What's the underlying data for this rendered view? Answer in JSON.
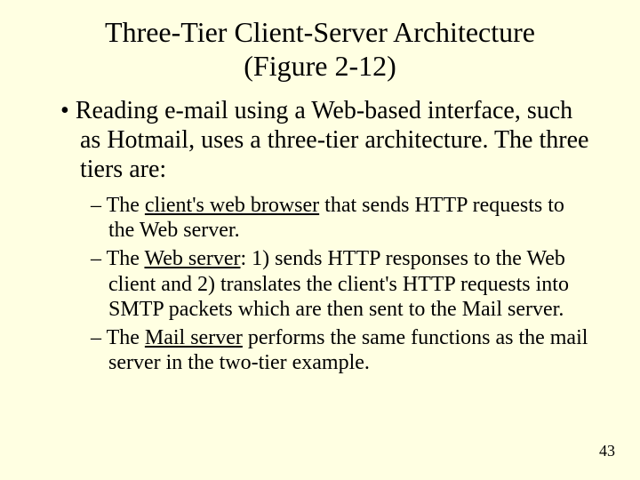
{
  "colors": {
    "background": "#ffffe2",
    "text": "#000000"
  },
  "typography": {
    "family": "Times New Roman",
    "title_fontsize": 32,
    "l1_fontsize": 28,
    "l2_fontsize": 24,
    "pagenum_fontsize": 18
  },
  "title": {
    "line1": "Three-Tier Client-Server Architecture",
    "line2": "(Figure 2-12)"
  },
  "bullet1": "Reading e-mail using a Web-based interface, such as Hotmail, uses a three-tier architecture. The three tiers are:",
  "sub1": {
    "dash": "– ",
    "pre": "The ",
    "u": "client's web browser",
    "post": " that sends HTTP requests to the Web server."
  },
  "sub2": {
    "dash": "– ",
    "pre": "The ",
    "u": "Web server",
    "post": ": 1) sends HTTP responses to the Web client and 2) translates the client's HTTP requests into SMTP packets which are then sent to the Mail server."
  },
  "sub3": {
    "dash": "– ",
    "pre": "The ",
    "u": "Mail server",
    "post": " performs the same functions as the mail server in the two-tier example."
  },
  "page_number": "43"
}
